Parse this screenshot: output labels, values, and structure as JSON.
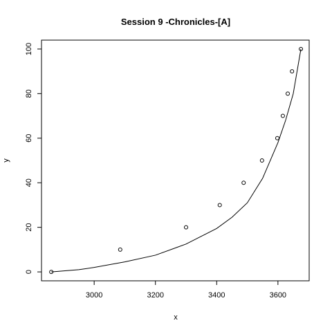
{
  "chart_data": {
    "type": "scatter",
    "title": "Session 9 -Chronicles-[A]",
    "xlabel": "x",
    "ylabel": "y",
    "points": {
      "x": [
        2860,
        3085,
        3300,
        3410,
        3488,
        3548,
        3598,
        3616,
        3632,
        3646,
        3675
      ],
      "y": [
        0,
        10,
        20,
        30,
        40,
        50,
        60,
        70,
        80,
        90,
        100
      ],
      "color": "#000000"
    },
    "curve": {
      "x": [
        2860,
        2950,
        3000,
        3100,
        3200,
        3300,
        3400,
        3450,
        3500,
        3550,
        3600,
        3625,
        3650,
        3675
      ],
      "y": [
        0,
        1,
        2,
        4.5,
        7.5,
        12.5,
        19.5,
        24.5,
        31,
        42,
        58,
        68,
        80,
        100
      ],
      "color": "#000000"
    },
    "xlim": [
      2828,
      3702
    ],
    "ylim": [
      -4,
      104
    ],
    "xticks": [
      3000,
      3200,
      3400,
      3600
    ],
    "yticks": [
      0,
      20,
      40,
      60,
      80,
      100
    ]
  }
}
